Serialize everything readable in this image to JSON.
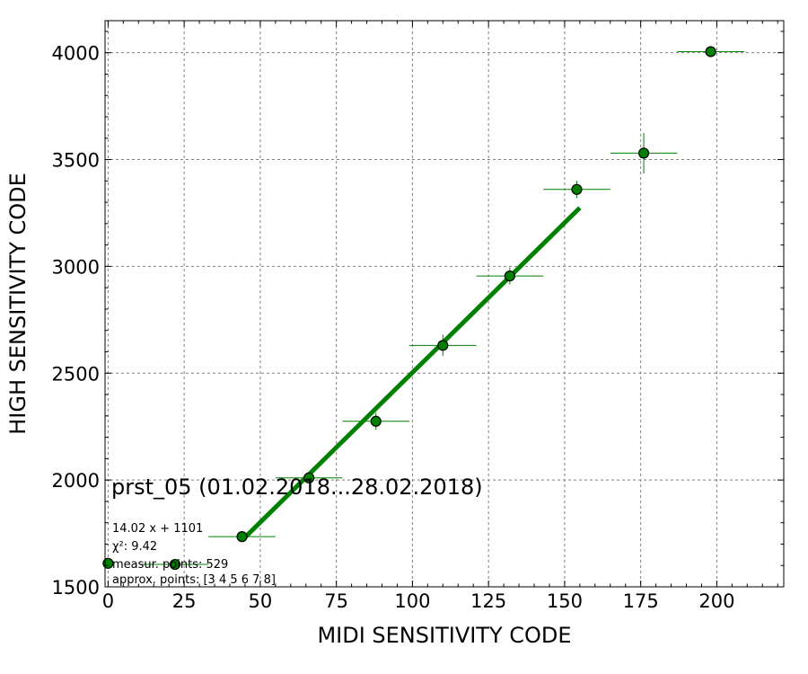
{
  "chart_data": {
    "type": "scatter",
    "title": "prst_05 (01.02.2018...28.02.2018)",
    "xlabel": "MIDI SENSITIVITY CODE",
    "ylabel": "HIGH SENSITIVITY CODE",
    "xlim": [
      -1,
      222
    ],
    "ylim": [
      1500,
      4150
    ],
    "xticks": [
      0,
      25,
      50,
      75,
      100,
      125,
      150,
      175,
      200
    ],
    "yticks": [
      1500,
      2000,
      2500,
      3000,
      3500,
      4000
    ],
    "grid": true,
    "colors": {
      "points": "#008000",
      "point_edge": "#000000",
      "fit_line": "#008000",
      "grid": "#808080"
    },
    "series": [
      {
        "points": [
          {
            "x": 0,
            "y": 1610,
            "xerr": 0,
            "yerr": 0
          },
          {
            "x": 22,
            "y": 1605,
            "xerr": 11,
            "yerr": 0
          },
          {
            "x": 44,
            "y": 1735,
            "xerr": 11,
            "yerr": 0
          },
          {
            "x": 66,
            "y": 2010,
            "xerr": 11,
            "yerr": 0
          },
          {
            "x": 88,
            "y": 2275,
            "xerr": 11,
            "yerr": 40
          },
          {
            "x": 110,
            "y": 2630,
            "xerr": 11,
            "yerr": 50
          },
          {
            "x": 132,
            "y": 2955,
            "xerr": 11,
            "yerr": 40
          },
          {
            "x": 154,
            "y": 3360,
            "xerr": 11,
            "yerr": 40
          },
          {
            "x": 176,
            "y": 3530,
            "xerr": 11,
            "yerr": 95
          },
          {
            "x": 198,
            "y": 4005,
            "xerr": 11,
            "yerr": 25
          }
        ]
      }
    ],
    "fit": {
      "slope": 14.02,
      "intercept": 1101,
      "x_range": [
        44,
        155
      ]
    },
    "annotations": [
      "14.02 x + 1101",
      "χ²: 9.42",
      "measur. points: 529",
      "approx. points: [3 4 5 6 7 8]"
    ]
  }
}
